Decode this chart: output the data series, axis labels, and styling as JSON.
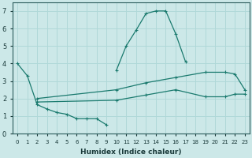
{
  "xlabel": "Humidex (Indice chaleur)",
  "xlim": [
    -0.5,
    23.5
  ],
  "ylim": [
    0,
    7.5
  ],
  "yticks": [
    0,
    1,
    2,
    3,
    4,
    5,
    6,
    7
  ],
  "xticks": [
    0,
    1,
    2,
    3,
    4,
    5,
    6,
    7,
    8,
    9,
    10,
    11,
    12,
    13,
    14,
    15,
    16,
    17,
    18,
    19,
    20,
    21,
    22,
    23
  ],
  "bg_color": "#cce8e8",
  "line_color": "#1a7a6e",
  "grid_color": "#b0d8d8",
  "line1": {
    "x": [
      0,
      1,
      2,
      3,
      4,
      5,
      6,
      7,
      8,
      9
    ],
    "y": [
      4.0,
      3.3,
      1.65,
      1.4,
      1.2,
      1.1,
      0.85,
      0.85,
      0.85,
      0.5
    ]
  },
  "line2": {
    "x": [
      10,
      11,
      12,
      13,
      14,
      15,
      16,
      17
    ],
    "y": [
      3.6,
      5.0,
      5.9,
      6.85,
      7.0,
      7.0,
      5.7,
      4.1
    ]
  },
  "line3": {
    "x": [
      2,
      10,
      13,
      16,
      19,
      21,
      22,
      23
    ],
    "y": [
      2.0,
      2.5,
      2.9,
      3.2,
      3.5,
      3.5,
      3.4,
      2.5
    ]
  },
  "line4": {
    "x": [
      2,
      10,
      13,
      16,
      19,
      21,
      22,
      23
    ],
    "y": [
      1.8,
      1.9,
      2.2,
      2.5,
      2.1,
      2.1,
      2.25,
      2.25
    ]
  }
}
